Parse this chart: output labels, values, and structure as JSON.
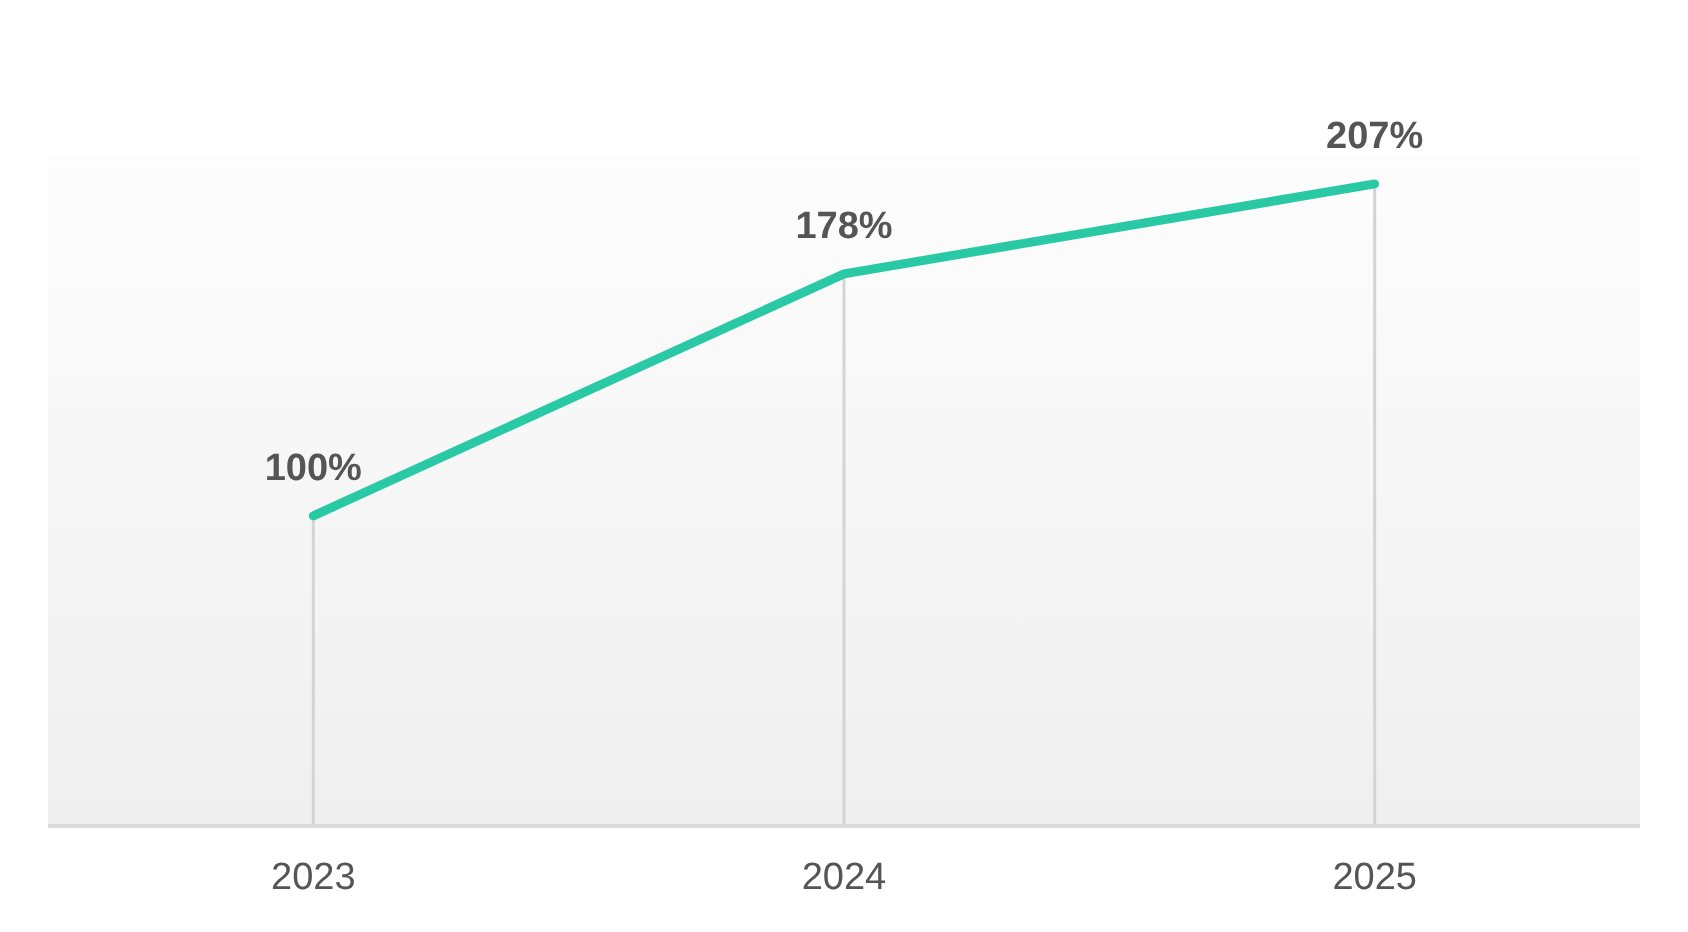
{
  "chart_data": {
    "type": "line",
    "categories": [
      "2023",
      "2024",
      "2025"
    ],
    "series": [
      {
        "color": "#2ac9a5",
        "values": [
          100,
          178,
          207
        ],
        "value_labels": [
          "100%",
          "178%",
          "207%"
        ]
      }
    ],
    "ylim": [
      0,
      216
    ],
    "tick_labels": "x",
    "grid": "x",
    "marker": "none",
    "line_style": "solid"
  }
}
